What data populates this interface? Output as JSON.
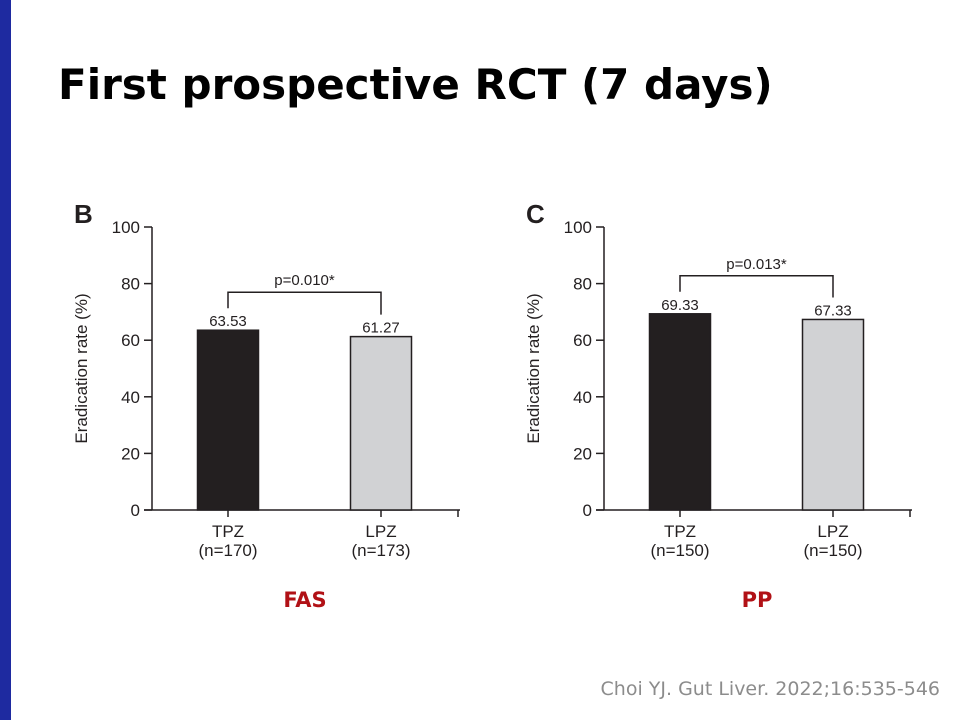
{
  "slide": {
    "title": "First prospective RCT (7 days)",
    "citation": "Choi YJ. Gut Liver. 2022;16:535-546",
    "accent_bar_color": "#1e2aa0",
    "caption_color": "#b11116"
  },
  "panels": [
    {
      "letter": "B",
      "caption": "FAS"
    },
    {
      "letter": "C",
      "caption": "PP"
    }
  ],
  "chart_data": [
    {
      "type": "bar",
      "panel": "B",
      "categories": [
        "TPZ",
        "LPZ"
      ],
      "category_sublabels": [
        "(n=170)",
        "(n=173)"
      ],
      "values": [
        63.53,
        61.27
      ],
      "value_labels": [
        "63.53",
        "61.27"
      ],
      "bar_colors": [
        "#231f20",
        "#d1d2d4"
      ],
      "ylabel": "Eradication rate (%)",
      "ylim": [
        0,
        100
      ],
      "yticks": [
        0,
        20,
        40,
        60,
        80,
        100
      ],
      "annotation": "p=0.010*",
      "grid": false
    },
    {
      "type": "bar",
      "panel": "C",
      "categories": [
        "TPZ",
        "LPZ"
      ],
      "category_sublabels": [
        "(n=150)",
        "(n=150)"
      ],
      "values": [
        69.33,
        67.33
      ],
      "value_labels": [
        "69.33",
        "67.33"
      ],
      "bar_colors": [
        "#231f20",
        "#d1d2d4"
      ],
      "ylabel": "Eradication rate (%)",
      "ylim": [
        0,
        100
      ],
      "yticks": [
        0,
        20,
        40,
        60,
        80,
        100
      ],
      "annotation": "p=0.013*",
      "grid": false
    }
  ]
}
